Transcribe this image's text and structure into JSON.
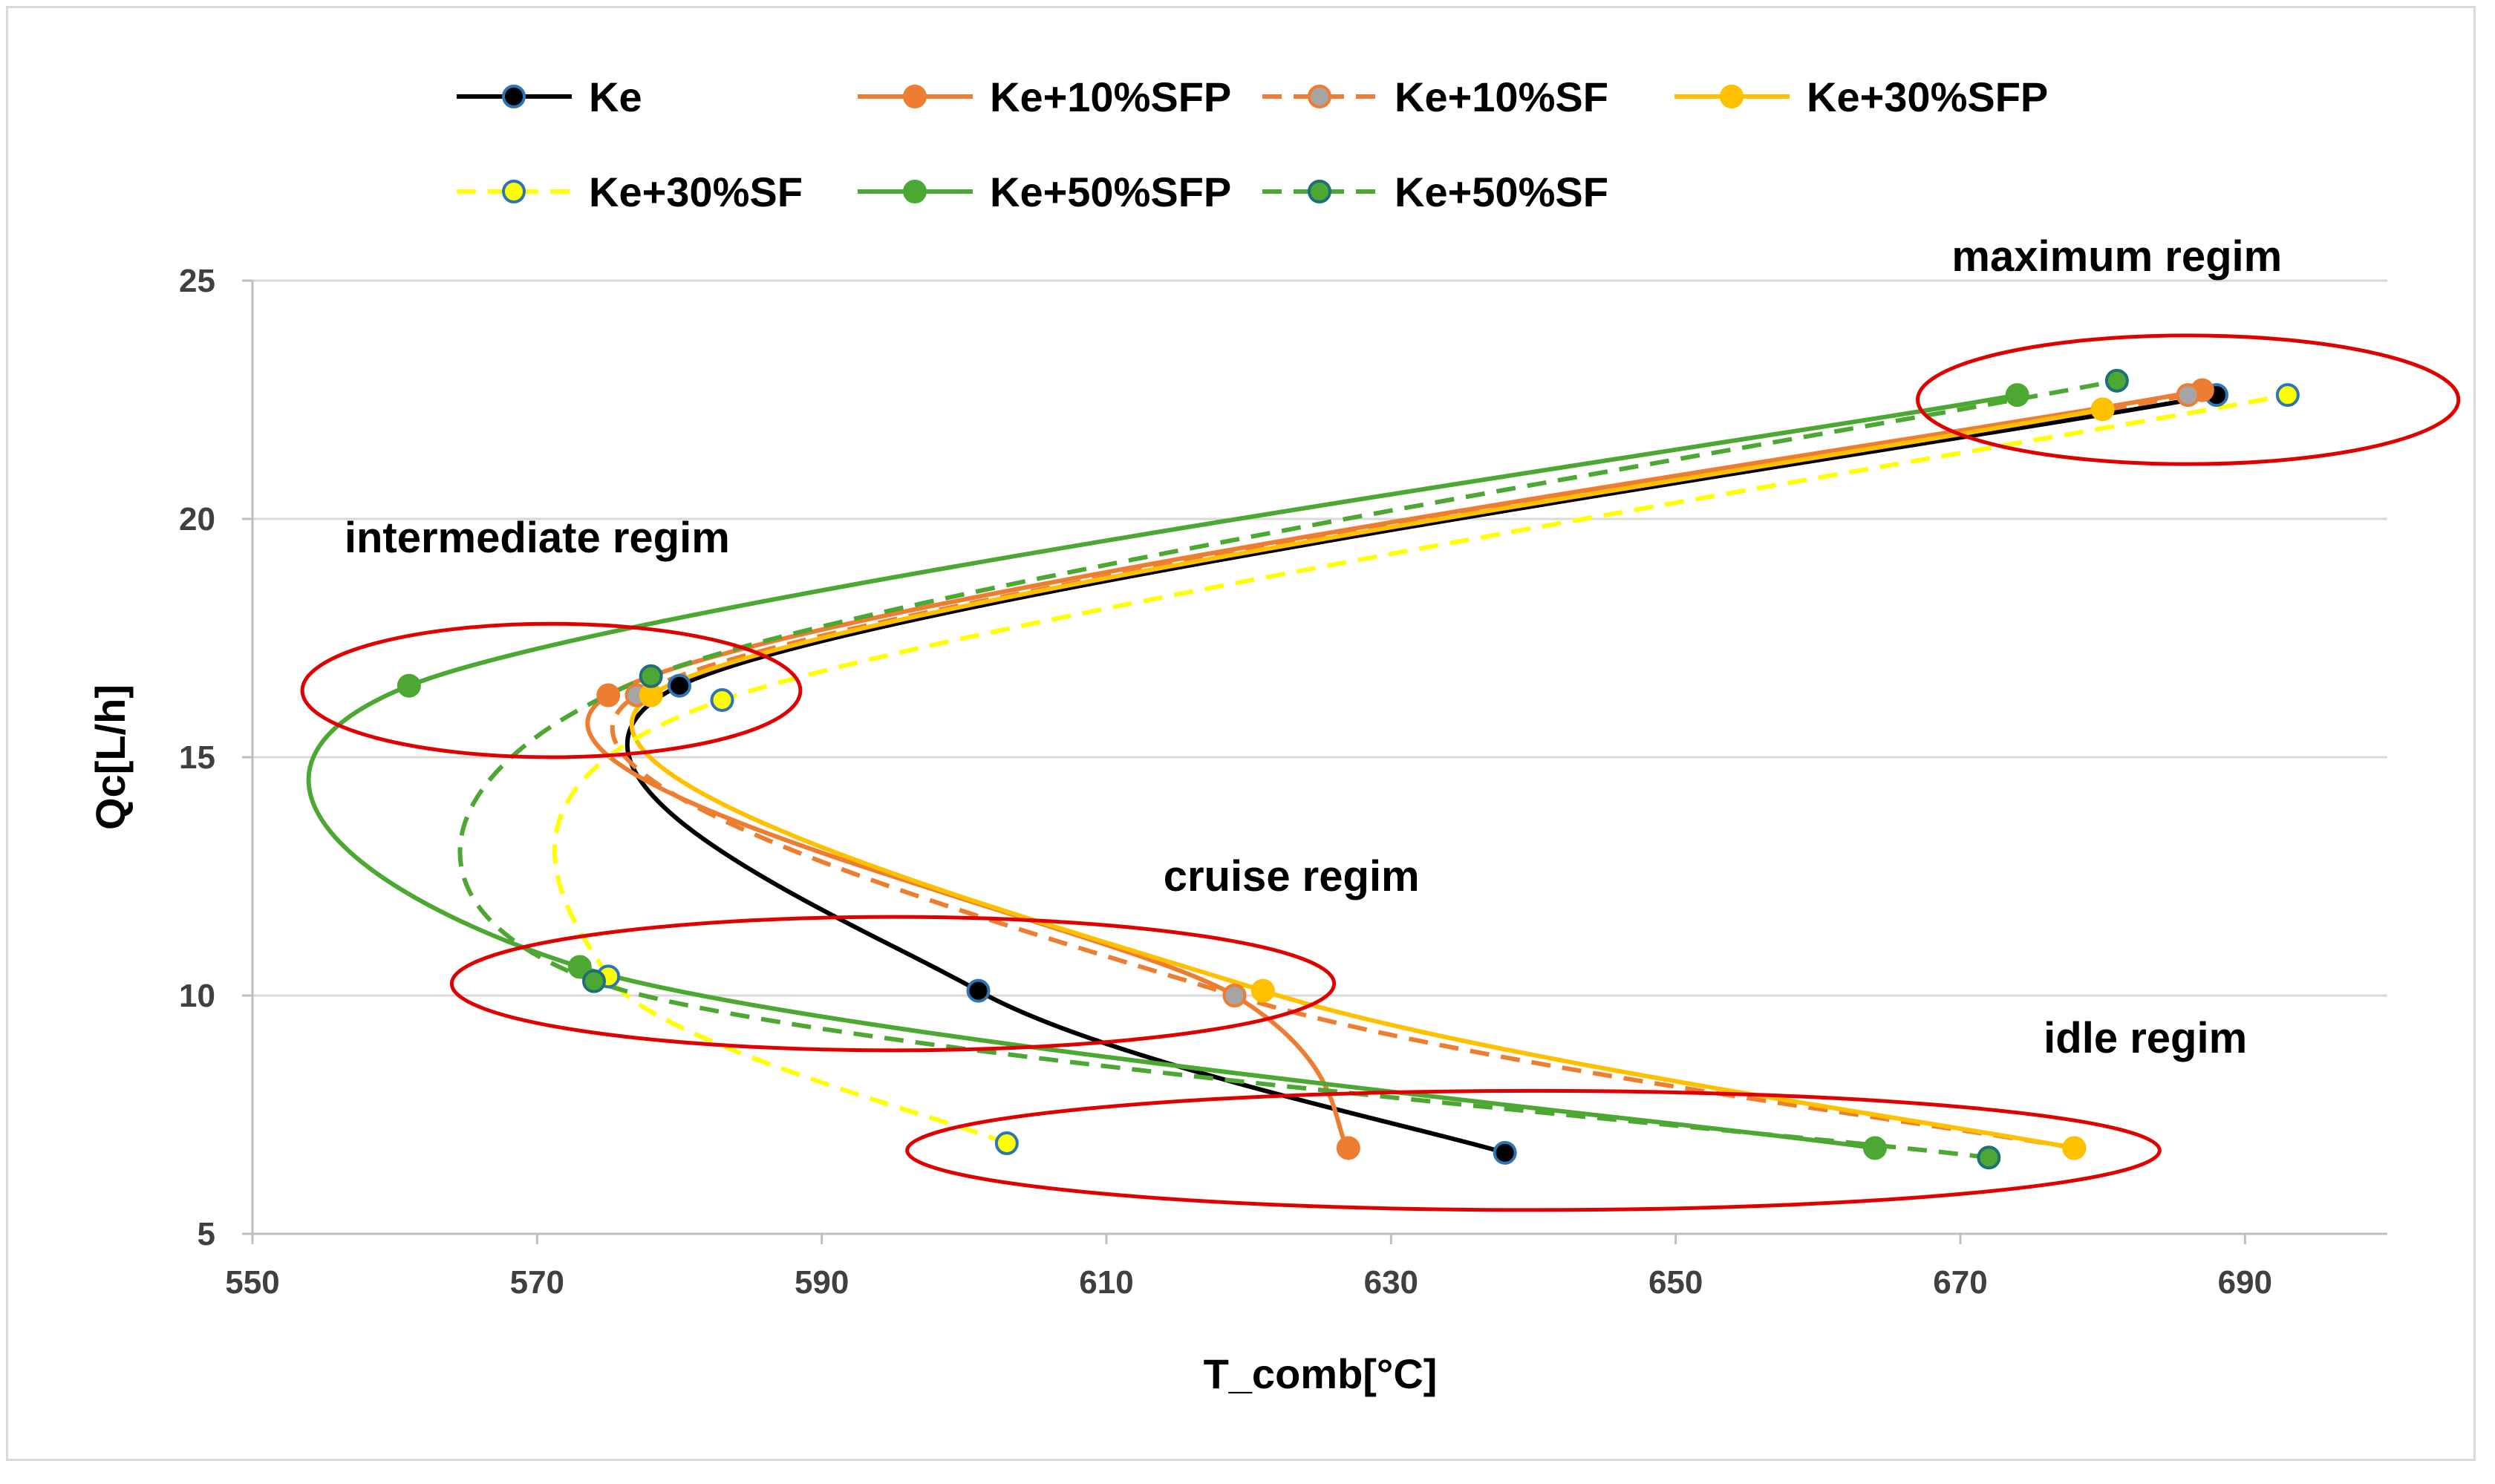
{
  "chart_data": {
    "type": "scatter",
    "title": "",
    "xlabel": "T_comb[°C]",
    "ylabel": "Qc[L/h]",
    "xlim": [
      550,
      700
    ],
    "ylim": [
      5,
      25
    ],
    "xticks": [
      550,
      570,
      590,
      610,
      630,
      650,
      670,
      690
    ],
    "yticks": [
      5,
      10,
      15,
      20,
      25
    ],
    "grid": "horizontal",
    "legend_position": "top",
    "series": [
      {
        "name": "Ke",
        "line": "#000000",
        "dash": false,
        "marker_fill": "#000000",
        "marker_edge": "#2e75b6",
        "points": [
          [
            638,
            6.7
          ],
          [
            601,
            10.1
          ],
          [
            580,
            16.5
          ],
          [
            688,
            22.6
          ]
        ]
      },
      {
        "name": "Ke+10%SFP",
        "line": "#ed7d31",
        "dash": false,
        "marker_fill": "#ed7d31",
        "marker_edge": "#ed7d31",
        "points": [
          [
            627,
            6.8
          ],
          [
            619,
            10.0
          ],
          [
            575,
            16.3
          ],
          [
            687,
            22.7
          ]
        ]
      },
      {
        "name": "Ke+10%SF",
        "line": "#ed7d31",
        "dash": true,
        "marker_fill": "#a5a5a5",
        "marker_edge": "#ed7d31",
        "points": [
          [
            678,
            6.8
          ],
          [
            619,
            10.0
          ],
          [
            577,
            16.3
          ],
          [
            686,
            22.6
          ]
        ]
      },
      {
        "name": "Ke+30%SFP",
        "line": "#ffc000",
        "dash": false,
        "marker_fill": "#ffc000",
        "marker_edge": "#ffc000",
        "points": [
          [
            678,
            6.8
          ],
          [
            621,
            10.1
          ],
          [
            578,
            16.3
          ],
          [
            680,
            22.3
          ]
        ]
      },
      {
        "name": "Ke+30%SF",
        "line": "#ffff00",
        "dash": true,
        "marker_fill": "#ffff00",
        "marker_edge": "#2e75b6",
        "points": [
          [
            603,
            6.9
          ],
          [
            575,
            10.4
          ],
          [
            583,
            16.2
          ],
          [
            693,
            22.6
          ]
        ]
      },
      {
        "name": "Ke+50%SFP",
        "line": "#4ca832",
        "dash": false,
        "marker_fill": "#4ca832",
        "marker_edge": "#4ca832",
        "points": [
          [
            664,
            6.8
          ],
          [
            573,
            10.6
          ],
          [
            561,
            16.5
          ],
          [
            674,
            22.6
          ]
        ]
      },
      {
        "name": "Ke+50%SF",
        "line": "#4ca832",
        "dash": true,
        "marker_fill": "#4ca832",
        "marker_edge": "#1f6f7a",
        "points": [
          [
            672,
            6.6
          ],
          [
            574,
            10.3
          ],
          [
            578,
            16.7
          ],
          [
            681,
            22.9
          ]
        ]
      }
    ],
    "regions": [
      {
        "label": "maximum regim",
        "cx": 686,
        "cy": 22.5,
        "rx": 19,
        "ry": 1.35
      },
      {
        "label": "intermediate regim",
        "cx": 571,
        "cy": 16.4,
        "rx": 17.5,
        "ry": 1.4
      },
      {
        "label": "cruise regim",
        "cx": 595,
        "cy": 10.25,
        "rx": 31,
        "ry": 1.4
      },
      {
        "label": "idle regim",
        "cx": 640,
        "cy": 6.75,
        "rx": 44,
        "ry": 1.25
      }
    ],
    "annotations": [
      {
        "text": "maximum regim",
        "x": 681,
        "y": 25.2
      },
      {
        "text": "intermediate regim",
        "x": 570,
        "y": 19.3
      },
      {
        "text": "cruise regim",
        "x": 623,
        "y": 12.2
      },
      {
        "text": "idle regim",
        "x": 683,
        "y": 8.8
      }
    ],
    "region_color": "#e00000"
  }
}
